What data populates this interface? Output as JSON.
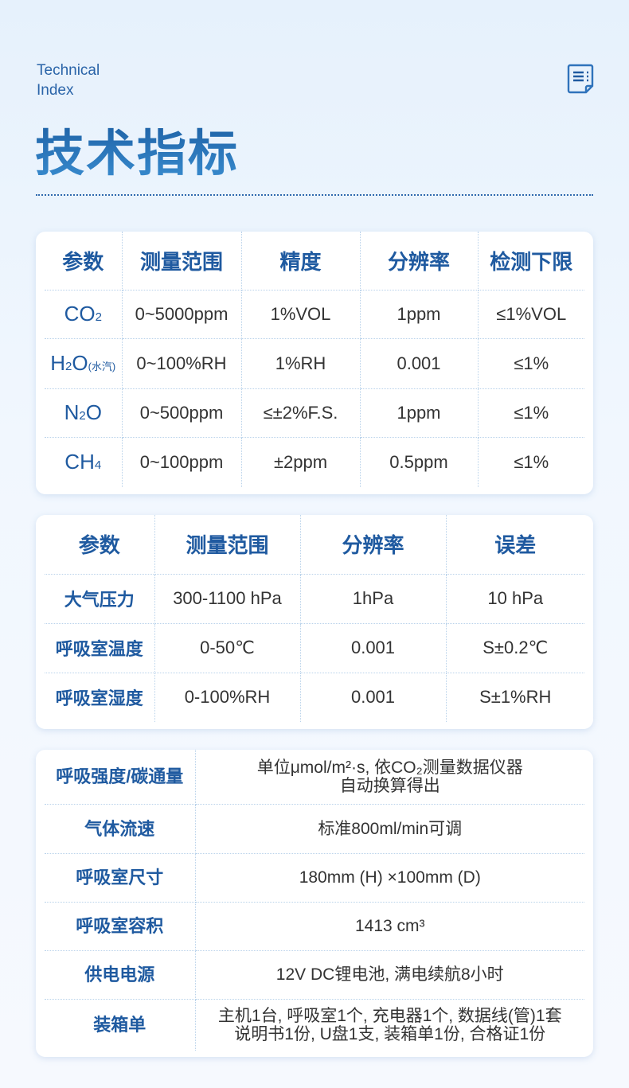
{
  "header": {
    "en_line1": "Technical",
    "en_line2": "Index",
    "title": "技术指标",
    "icon": "document-list-icon",
    "accent": "#1f5aa0"
  },
  "gas_table": {
    "headers": [
      "参数",
      "测量范围",
      "精度",
      "分辨率",
      "检测下限"
    ],
    "rows": [
      {
        "param": [
          {
            "t": "CO"
          },
          {
            "t": "2",
            "sub": true
          }
        ],
        "cells": [
          "0~5000ppm",
          "1%VOL",
          "1ppm",
          "≤1%VOL"
        ]
      },
      {
        "param": [
          {
            "t": "H"
          },
          {
            "t": "2",
            "sub": true
          },
          {
            "t": "O"
          },
          {
            "t": "(水汽)",
            "small": true
          }
        ],
        "cells": [
          "0~100%RH",
          "1%RH",
          "0.001",
          "≤1%"
        ]
      },
      {
        "param": [
          {
            "t": "N"
          },
          {
            "t": "2",
            "sub": true
          },
          {
            "t": "O"
          }
        ],
        "cells": [
          "0~500ppm",
          "≤±2%F.S.",
          "1ppm",
          "≤1%"
        ]
      },
      {
        "param": [
          {
            "t": "CH"
          },
          {
            "t": "4",
            "sub": true
          }
        ],
        "cells": [
          "0~100ppm",
          "±2ppm",
          "0.5ppm",
          "≤1%"
        ]
      }
    ]
  },
  "env_table": {
    "headers": [
      "参数",
      "测量范围",
      "分辨率",
      "误差"
    ],
    "rows": [
      [
        "大气压力",
        "300-1100 hPa",
        "1hPa",
        "10 hPa"
      ],
      [
        "呼吸室温度",
        "0-50℃",
        "0.001",
        "S±0.2℃"
      ],
      [
        "呼吸室湿度",
        "0-100%RH",
        "0.001",
        "S±1%RH"
      ]
    ]
  },
  "spec_table": {
    "rows": [
      {
        "label": "呼吸强度/碳通量",
        "lines": [
          "单位μmol/m²·s, 依CO₂测量数据仪器",
          "自动换算得出"
        ]
      },
      {
        "label": "气体流速",
        "lines": [
          "标准800ml/min可调"
        ]
      },
      {
        "label": "呼吸室尺寸",
        "lines": [
          "180mm (H) ×100mm (D)"
        ]
      },
      {
        "label": "呼吸室容积",
        "lines": [
          "1413 cm³"
        ]
      },
      {
        "label": "供电电源",
        "lines": [
          "12V DC锂电池, 满电续航8小时"
        ]
      },
      {
        "label": "装箱单",
        "lines": [
          "主机1台, 呼吸室1个, 充电器1个, 数据线(管)1套",
          "说明书1份, U盘1支, 装箱单1份, 合格证1份"
        ]
      }
    ]
  }
}
